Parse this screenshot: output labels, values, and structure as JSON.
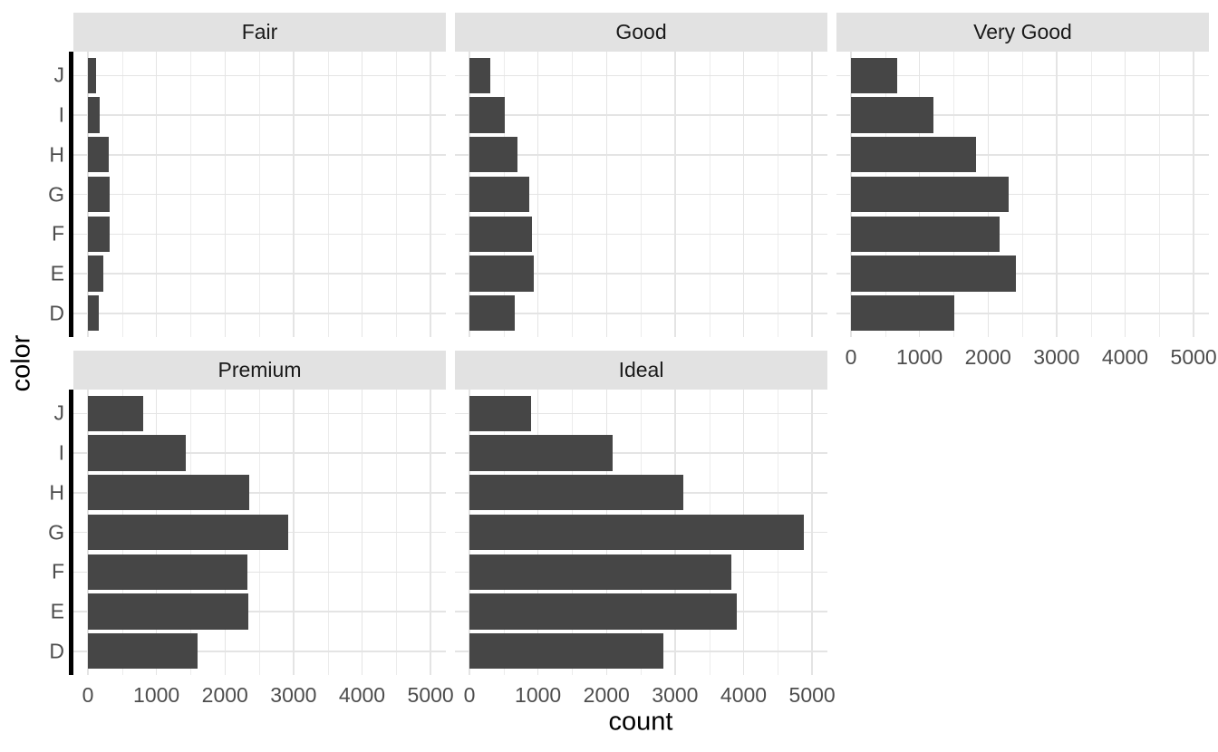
{
  "chart_data": {
    "type": "bar",
    "orientation": "horizontal",
    "title": "",
    "xlabel": "count",
    "ylabel": "color",
    "categories_top_to_bottom": [
      "J",
      "I",
      "H",
      "G",
      "F",
      "E",
      "D"
    ],
    "x_ticks": [
      "0",
      "1000",
      "2000",
      "3000",
      "4000",
      "5000"
    ],
    "x_tick_values": [
      0,
      1000,
      2000,
      3000,
      4000,
      5000
    ],
    "x_minor_values": [
      500,
      1500,
      2500,
      3500,
      4500
    ],
    "xlim": [
      0,
      5000
    ],
    "legend_position": "none",
    "grid": "vertical major+minor, horizontal major at category centers",
    "series": [
      {
        "name": "Fair",
        "values": [
          119,
          175,
          303,
          314,
          312,
          224,
          163
        ]
      },
      {
        "name": "Good",
        "values": [
          307,
          522,
          702,
          871,
          909,
          933,
          662
        ]
      },
      {
        "name": "Very Good",
        "values": [
          678,
          1204,
          1824,
          2299,
          2164,
          2400,
          1513
        ]
      },
      {
        "name": "Premium",
        "values": [
          808,
          1428,
          2360,
          2924,
          2331,
          2337,
          1603
        ]
      },
      {
        "name": "Ideal",
        "values": [
          896,
          2093,
          3115,
          4884,
          3826,
          3903,
          2834
        ]
      }
    ],
    "facets": [
      {
        "label": "Fair",
        "row": 0,
        "col": 0,
        "y_axis": true,
        "x_labels": false
      },
      {
        "label": "Good",
        "row": 0,
        "col": 1,
        "y_axis": false,
        "x_labels": false
      },
      {
        "label": "Very Good",
        "row": 0,
        "col": 2,
        "y_axis": false,
        "x_labels": true
      },
      {
        "label": "Premium",
        "row": 1,
        "col": 0,
        "y_axis": true,
        "x_labels": true
      },
      {
        "label": "Ideal",
        "row": 1,
        "col": 1,
        "y_axis": false,
        "x_labels": true
      }
    ]
  },
  "colors": {
    "bar_fill": "#464646",
    "strip_background": "#e2e2e2",
    "strip_text": "#1a1a1a",
    "tick_label": "#4d4d4d",
    "axis_title": "#000000",
    "grid_major": "#e4e4e4",
    "grid_minor": "#ececec",
    "y_axis_line": "#000000",
    "panel_background": "#ffffff"
  }
}
